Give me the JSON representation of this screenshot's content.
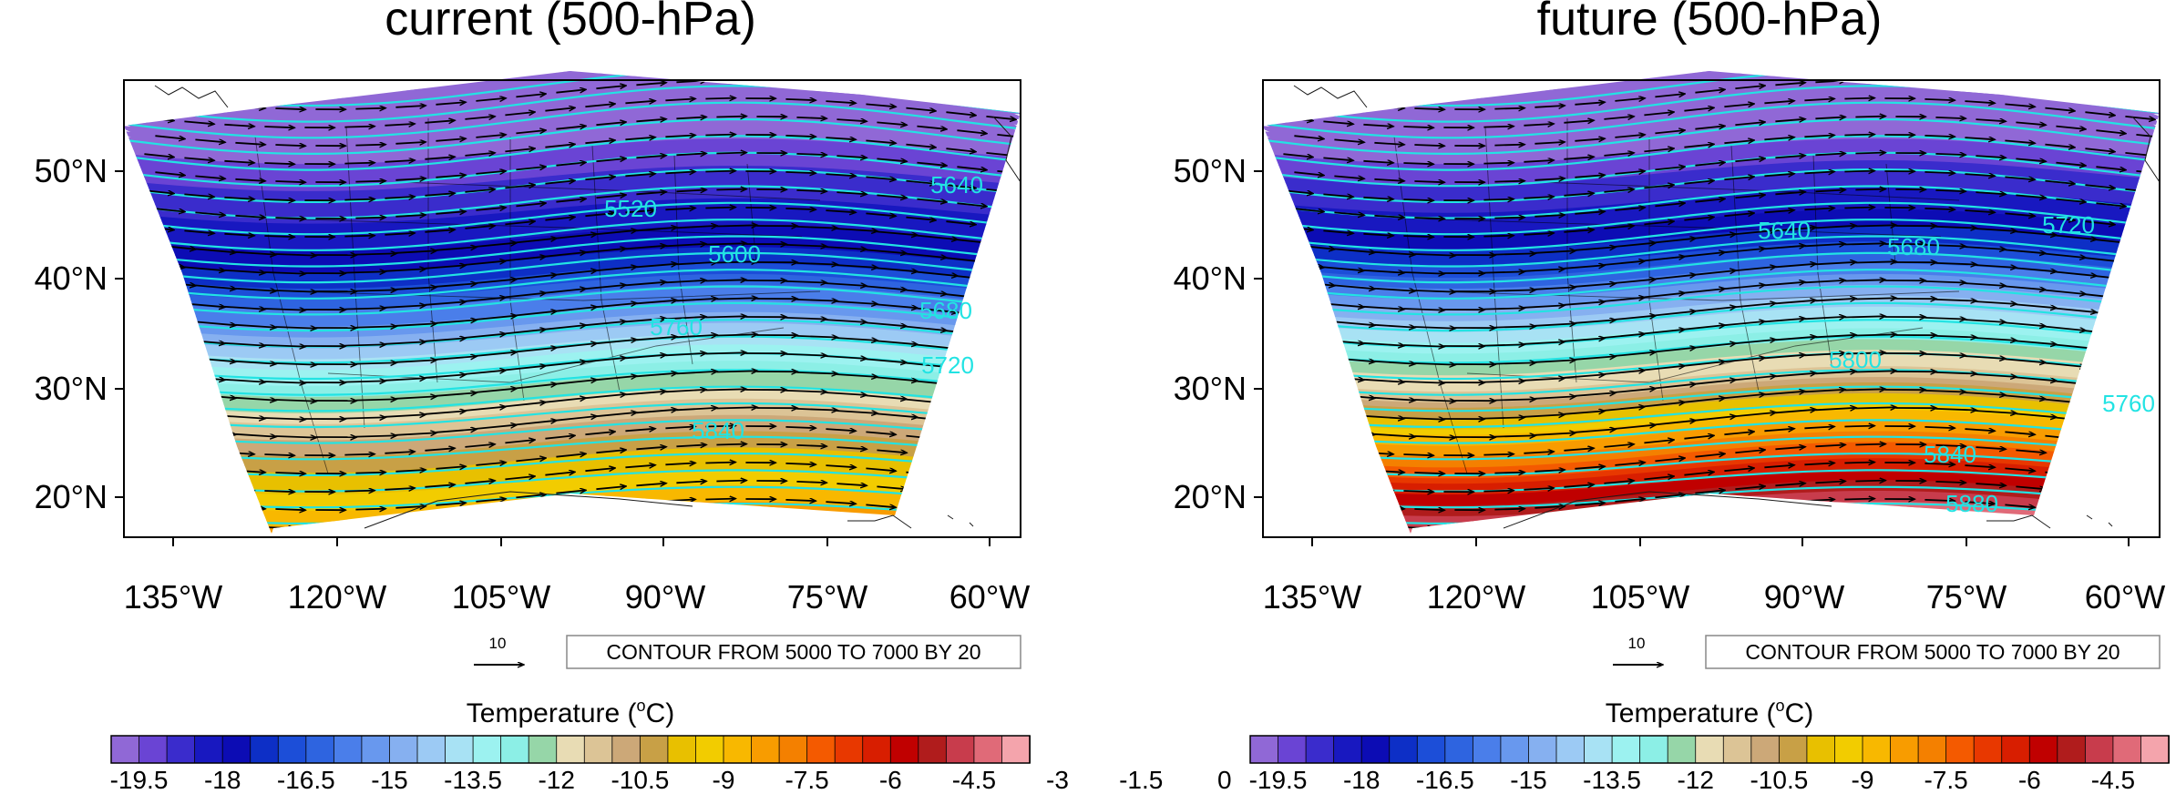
{
  "colors": {
    "isoline": "#22e3e3",
    "vector": "#000000",
    "coast": "#1a1a1a"
  },
  "chart_data": [
    {
      "type": "heatmap",
      "title": "current (500-hPa)",
      "projection": "conic",
      "lon_ticks": [
        "135°W",
        "120°W",
        "105°W",
        "90°W",
        "75°W",
        "60°W"
      ],
      "lat_ticks": [
        "20°N",
        "30°N",
        "40°N",
        "50°N"
      ],
      "lon_range": [
        -137,
        -58
      ],
      "lat_range": [
        16,
        58
      ],
      "contour_info": "CONTOUR FROM 5000 TO 7000 BY 20",
      "vector_ref": "10",
      "contour_labels": [
        "5520",
        "5600",
        "5640",
        "5680",
        "5720",
        "5760",
        "5840"
      ],
      "temperature_profile": [
        {
          "lat": 18,
          "temp": -8.0
        },
        {
          "lat": 22,
          "temp": -9.2
        },
        {
          "lat": 26,
          "temp": -10.3
        },
        {
          "lat": 30,
          "temp": -12.0
        },
        {
          "lat": 34,
          "temp": -13.6
        },
        {
          "lat": 38,
          "temp": -15.5
        },
        {
          "lat": 42,
          "temp": -17.2
        },
        {
          "lat": 46,
          "temp": -18.0
        },
        {
          "lat": 50,
          "temp": -18.6
        },
        {
          "lat": 54,
          "temp": -19.6
        }
      ]
    },
    {
      "type": "heatmap",
      "title": "future (500-hPa)",
      "projection": "conic",
      "lon_ticks": [
        "135°W",
        "120°W",
        "105°W",
        "90°W",
        "75°W",
        "60°W"
      ],
      "lat_ticks": [
        "20°N",
        "30°N",
        "40°N",
        "50°N"
      ],
      "lon_range": [
        -137,
        -58
      ],
      "lat_range": [
        16,
        58
      ],
      "contour_info": "CONTOUR FROM 5000 TO 7000 BY 20",
      "vector_ref": "10",
      "contour_labels": [
        "5640",
        "5680",
        "5720",
        "5760",
        "5800",
        "5840",
        "5880"
      ],
      "temperature_profile": [
        {
          "lat": 18,
          "temp": -4.0
        },
        {
          "lat": 22,
          "temp": -6.0
        },
        {
          "lat": 26,
          "temp": -8.2
        },
        {
          "lat": 30,
          "temp": -10.6
        },
        {
          "lat": 34,
          "temp": -12.3
        },
        {
          "lat": 38,
          "temp": -14.5
        },
        {
          "lat": 42,
          "temp": -16.5
        },
        {
          "lat": 46,
          "temp": -17.8
        },
        {
          "lat": 50,
          "temp": -18.6
        },
        {
          "lat": 54,
          "temp": -19.6
        }
      ]
    }
  ],
  "colorbar": {
    "title": "Temperature",
    "unit_base": "(",
    "unit_sup": "o",
    "unit_rest": "C)",
    "tick_labels": [
      "-19.5",
      "-18",
      "-16.5",
      "-15",
      "-13.5",
      "-12",
      "-10.5",
      "-9",
      "-7.5",
      "-6",
      "-4.5",
      "-3",
      "-1.5",
      "0"
    ],
    "colors": [
      "#9068d6",
      "#6a44d4",
      "#3a2ccc",
      "#1818c0",
      "#0c0cb4",
      "#0d2fc6",
      "#1c4ed8",
      "#2e64e0",
      "#4a7eea",
      "#6898ee",
      "#86b0f0",
      "#9ccaf4",
      "#a8e2f4",
      "#9cf2f0",
      "#8cefe6",
      "#96d6a8",
      "#e8dcb4",
      "#dcc496",
      "#cca878",
      "#c8a046",
      "#e8c000",
      "#f2cc00",
      "#f8b800",
      "#f89c00",
      "#f48000",
      "#f45a00",
      "#e83800",
      "#d81e00",
      "#c00000",
      "#b01c1c",
      "#c83c4c",
      "#e06a78",
      "#f4a4ac"
    ]
  }
}
